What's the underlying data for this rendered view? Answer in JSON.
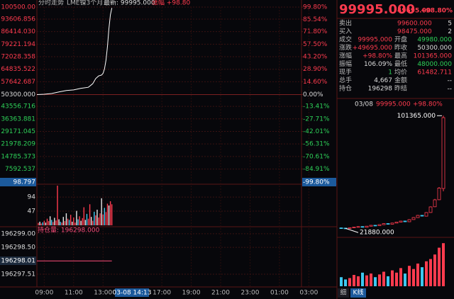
{
  "header": {
    "title": "分时走势",
    "symbol": "LME镍3个月",
    "latest": "最新: 99995.000",
    "change": "涨幅 +98.80"
  },
  "cursor": {
    "price": "98.797",
    "percent": "-99.80%",
    "time": "03-08 14:13",
    "position": "196298.01"
  },
  "chart_data": [
    {
      "type": "line",
      "color": "#ffffff",
      "grid": true,
      "x": [
        8.5,
        9,
        9.5,
        10,
        10.5,
        11,
        11.5,
        12,
        12.3,
        12.5,
        12.7,
        12.9,
        13,
        13.1,
        13.2,
        13.3,
        13.4,
        13.5,
        13.6
      ],
      "values": [
        50300,
        50500,
        50900,
        51800,
        52600,
        53000,
        53900,
        54500,
        56500,
        59500,
        61000,
        61500,
        62500,
        65000,
        70000,
        78000,
        88000,
        96000,
        99995
      ],
      "xlim": [
        8.5,
        26.5
      ],
      "xticks": [
        {
          "value": 9,
          "label": "09:00"
        },
        {
          "value": 11,
          "label": "11:00"
        },
        {
          "value": 13,
          "label": "13:00"
        },
        {
          "value": 17,
          "label": "17:00"
        },
        {
          "value": 19,
          "label": "19:00"
        },
        {
          "value": 21,
          "label": "21:00"
        },
        {
          "value": 23,
          "label": "23:00"
        },
        {
          "value": 25,
          "label": "01:00"
        },
        {
          "value": 27,
          "label": "03:00"
        }
      ],
      "ylim": [
        98.797,
        100500
      ],
      "yticks": [
        {
          "value": 100500,
          "label": "100500.00"
        },
        93606.856,
        {
          "value": 86414.03,
          "label": "86414.030"
        },
        79221.194,
        72028.358,
        64835.522,
        57642.687,
        {
          "value": 50300,
          "label": "50300.000"
        },
        43556.716,
        36363.881,
        29171.045,
        21978.209,
        14785.373,
        7592.537
      ],
      "y2lim": [
        -99.8,
        99.8
      ],
      "y2ticks": [
        {
          "value": 99.8,
          "label": "99.80%"
        },
        {
          "value": 85.54,
          "label": "85.54%"
        },
        {
          "value": 71.8,
          "label": "71.80%"
        },
        {
          "value": 57.5,
          "label": "57.50%"
        },
        {
          "value": 43.2,
          "label": "43.20%"
        },
        {
          "value": 28.9,
          "label": "28.90%"
        },
        {
          "value": 14.6,
          "label": "14.60%"
        },
        {
          "value": 0,
          "label": "0.00%"
        },
        {
          "value": -13.41,
          "label": "-13.41%"
        },
        {
          "value": -27.71,
          "label": "-27.71%"
        },
        {
          "value": -42.01,
          "label": "-42.01%"
        },
        {
          "value": -56.31,
          "label": "-56.31%"
        },
        {
          "value": -70.61,
          "label": "-70.61%"
        },
        {
          "value": -84.91,
          "label": "-84.91%"
        }
      ]
    },
    {
      "type": "bar",
      "x": [
        8.6,
        8.7,
        8.8,
        8.9,
        9.0,
        9.1,
        9.2,
        9.3,
        9.4,
        9.5,
        9.6,
        9.7,
        9.8,
        9.9,
        10.0,
        10.1,
        10.2,
        10.3,
        10.4,
        10.5,
        10.6,
        10.7,
        10.8,
        10.9,
        11.0,
        11.1,
        11.2,
        11.3,
        11.4,
        11.5,
        11.6,
        11.7,
        11.8,
        11.9,
        12.0,
        12.1,
        12.2,
        12.3,
        12.4,
        12.5,
        12.6,
        12.7,
        12.8,
        12.9,
        13.0,
        13.1,
        13.2,
        13.3,
        13.4,
        13.5,
        13.6
      ],
      "values": [
        8,
        12,
        6,
        10,
        15,
        9,
        22,
        14,
        30,
        18,
        11,
        25,
        16,
        132,
        20,
        12,
        9,
        28,
        14,
        40,
        22,
        18,
        35,
        12,
        26,
        9,
        48,
        20,
        30,
        15,
        24,
        60,
        18,
        38,
        22,
        70,
        28,
        15,
        45,
        33,
        52,
        26,
        40,
        90,
        36,
        58,
        44,
        72,
        66,
        80,
        70
      ],
      "colors": [
        "#ff3b4e",
        "#e6e6e6",
        "#ff3b4e",
        "#3cc8f0",
        "#ff3b4e",
        "#e6e6e6",
        "#ff3b4e",
        "#ff3b4e",
        "#e6e6e6",
        "#3cc8f0",
        "#ff3b4e",
        "#e6e6e6",
        "#ff3b4e",
        "#ff3b4e",
        "#e6e6e6",
        "#3cc8f0",
        "#ff3b4e",
        "#e6e6e6",
        "#ff3b4e",
        "#e6e6e6",
        "#ff3b4e",
        "#3cc8f0",
        "#ff3b4e",
        "#e6e6e6",
        "#ff3b4e",
        "#ff3b4e",
        "#e6e6e6",
        "#3cc8f0",
        "#ff3b4e",
        "#e6e6e6",
        "#ff3b4e",
        "#ff3b4e",
        "#e6e6e6",
        "#3cc8f0",
        "#ff3b4e",
        "#ff3b4e",
        "#e6e6e6",
        "#ff3b4e",
        "#3cc8f0",
        "#ff3b4e",
        "#e6e6e6",
        "#ff3b4e",
        "#ff3b4e",
        "#e6e6e6",
        "#ff3b4e",
        "#3cc8f0",
        "#ff3b4e",
        "#ff3b4e",
        "#e6e6e6",
        "#ff3b4e",
        "#ff3b4e"
      ],
      "ylim": [
        0,
        132
      ],
      "yticks": [
        47,
        94
      ]
    },
    {
      "type": "line",
      "series": [
        {
          "name": "持仓量: 196298.000",
          "color": "#ff4d7a",
          "x": [
            8.5,
            13.6
          ],
          "values": [
            196298,
            196298
          ]
        }
      ],
      "ylim": [
        196297.04,
        196299.05
      ],
      "yticks": [
        {
          "value": 196299,
          "label": "196299.00"
        },
        {
          "value": 196298.5,
          "label": "196298.50"
        },
        196297.51
      ]
    },
    {
      "type": "candlestick",
      "up_color": "#ff3b4e",
      "down_color": "#3cc8f0",
      "open": [
        22200,
        22050,
        21900,
        22250,
        22750,
        23150,
        22600,
        23350,
        24050,
        23800,
        24450,
        25250,
        24800,
        25550,
        26250,
        27050,
        26500,
        28050,
        29450,
        31050,
        30450,
        33050,
        37100,
        42050,
        49980
      ],
      "high": [
        22400,
        22200,
        22400,
        22900,
        23300,
        23200,
        23500,
        24200,
        24100,
        24700,
        25400,
        25300,
        25800,
        26500,
        27200,
        27100,
        28300,
        29800,
        31300,
        31200,
        33300,
        37400,
        42600,
        51000,
        101365
      ],
      "low": [
        21950,
        21880,
        21880,
        22200,
        22700,
        22500,
        22550,
        23300,
        23700,
        23750,
        24400,
        24700,
        24750,
        25500,
        26200,
        26400,
        26400,
        27950,
        29400,
        30300,
        30400,
        32900,
        36900,
        41800,
        48000
      ],
      "close": [
        22000,
        21880,
        22300,
        22800,
        23100,
        22600,
        23400,
        24000,
        23800,
        24500,
        25200,
        24800,
        25600,
        26300,
        27000,
        26500,
        28000,
        29500,
        31000,
        30500,
        33000,
        37000,
        42000,
        50300,
        99995
      ],
      "ylim": [
        18000,
        103000
      ],
      "annotations": [
        {
          "label": "101365.000",
          "value": 101365
        },
        {
          "label": "21880.000",
          "value": 21880
        }
      ]
    },
    {
      "type": "bar",
      "values": [
        20,
        15,
        18,
        25,
        22,
        30,
        24,
        28,
        20,
        26,
        32,
        22,
        35,
        30,
        40,
        28,
        45,
        38,
        50,
        42,
        55,
        60,
        70,
        85,
        95
      ],
      "ylim": [
        0,
        100
      ]
    }
  ],
  "quote": {
    "price": "99995.000",
    "change": "49695.00",
    "change_pct": "+98.80%",
    "rows": [
      {
        "label": "卖出",
        "value": "99600.000",
        "color": "#ff3b4e",
        "value2": "5",
        "color2": "#dddddd"
      },
      {
        "label": "买入",
        "value": "98475.000",
        "color": "#ff3b4e",
        "value2": "2",
        "color2": "#dddddd"
      },
      {
        "label": "成交",
        "value": "99995.000",
        "color": "#ff3b4e",
        "label2": "开盘",
        "value2": "49980.000",
        "color2": "#2ed158"
      },
      {
        "label": "涨跌",
        "value": "+49695.000",
        "color": "#ff3b4e",
        "label2": "昨收",
        "value2": "50300.000",
        "color2": "#dddddd"
      },
      {
        "label": "涨幅",
        "value": "+98.80%",
        "color": "#ff3b4e",
        "label2": "最高",
        "value2": "101365.000",
        "color2": "#ff3b4e"
      },
      {
        "label": "振幅",
        "value": "106.09%",
        "color": "#dddddd",
        "label2": "最低",
        "value2": "48000.000",
        "color2": "#2ed158"
      },
      {
        "label": "现手",
        "value": "1",
        "color": "#2ed158",
        "label2": "均价",
        "value2": "61482.711",
        "color2": "#ff3b4e"
      },
      {
        "label": "总手",
        "value": "4,667",
        "color": "#dddddd",
        "label2": "金额",
        "value2": "--",
        "color2": "#dddddd"
      },
      {
        "label": "持仓",
        "value": "196298",
        "color": "#dddddd",
        "label2": "昨结",
        "value2": "--",
        "color2": "#dddddd"
      }
    ]
  },
  "kline_header": {
    "date": "03/08",
    "price": "99995.000",
    "change": "+98.80%"
  },
  "tabs": [
    "细",
    "K线"
  ]
}
